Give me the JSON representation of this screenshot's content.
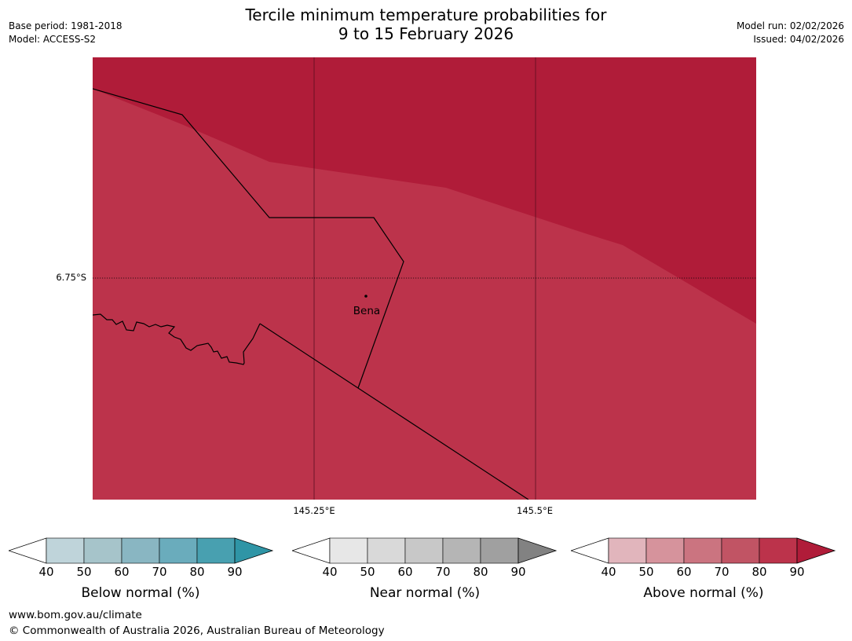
{
  "header": {
    "title_line1": "Tercile minimum temperature probabilities for",
    "title_line2": "9 to 15 February 2026",
    "base_period": "Base period: 1981-2018",
    "model": "Model: ACCESS-S2",
    "model_run": "Model run: 02/02/2026",
    "issued": "Issued: 04/02/2026"
  },
  "map": {
    "lat_label": "6.75°S",
    "lon_labels": [
      "145.25°E",
      "145.5°E"
    ],
    "place_label": "Bena",
    "colors": {
      "above_90": "#b01c39",
      "above_80": "#bc334b"
    }
  },
  "colorbars": [
    {
      "name": "below",
      "label": "Below normal (%)",
      "ticks": [
        "40",
        "50",
        "60",
        "70",
        "80",
        "90"
      ],
      "colors": [
        "#ffffff",
        "#bfd4da",
        "#a6c4ca",
        "#89b6c2",
        "#6aacbc",
        "#48a0b0",
        "#2f95a6"
      ]
    },
    {
      "name": "near",
      "label": "Near normal (%)",
      "ticks": [
        "40",
        "50",
        "60",
        "70",
        "80",
        "90"
      ],
      "colors": [
        "#ffffff",
        "#e7e7e7",
        "#d9d9d9",
        "#c8c8c8",
        "#b5b5b5",
        "#a0a0a0",
        "#828282"
      ]
    },
    {
      "name": "above",
      "label": "Above normal (%)",
      "ticks": [
        "40",
        "50",
        "60",
        "70",
        "80",
        "90"
      ],
      "colors": [
        "#ffffff",
        "#e1b5bc",
        "#d6939c",
        "#cb7480",
        "#c15464",
        "#bc334b",
        "#b01c39"
      ]
    }
  ],
  "footer": {
    "url": "www.bom.gov.au/climate",
    "copyright": "© Commonwealth of Australia 2026, Australian Bureau of Meteorology"
  }
}
